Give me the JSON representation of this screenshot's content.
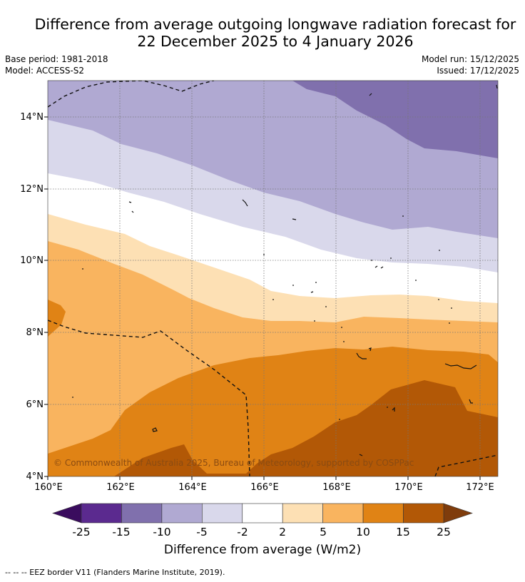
{
  "title": {
    "line1": "Difference from average outgoing longwave radiation forecast for",
    "line2": "22 December 2025 to 4 January 2026"
  },
  "meta": {
    "base_period": "Base period: 1981-2018",
    "model": "Model: ACCESS-S2",
    "model_run": "Model run: 15/12/2025",
    "issued": "Issued: 17/12/2025"
  },
  "map": {
    "lon_ticks": [
      "160°E",
      "162°E",
      "164°E",
      "166°E",
      "168°E",
      "170°E",
      "172°E"
    ],
    "lat_ticks": [
      "4°N",
      "6°N",
      "8°N",
      "10°N",
      "12°N",
      "14°N"
    ],
    "copyright": "© Commonwealth of Australia 2025, Bureau of Meteorology, supported by COSPPac"
  },
  "colorbar": {
    "ticks": [
      "-25",
      "-15",
      "-10",
      "-5",
      "-2",
      "2",
      "5",
      "10",
      "15",
      "25"
    ],
    "colors": [
      "#5b2a8f",
      "#8070ad",
      "#b0a9d2",
      "#d9d8eb",
      "#ffffff",
      "#fde0b4",
      "#f9b45f",
      "#e08315",
      "#b25806"
    ],
    "low_color": "#3a0c5e",
    "high_color": "#7f3c0c",
    "label": "Difference from average (W/m2)"
  },
  "footnote": "--  --  -- EEZ border V11 (Flanders Marine Institute, 2019)."
}
